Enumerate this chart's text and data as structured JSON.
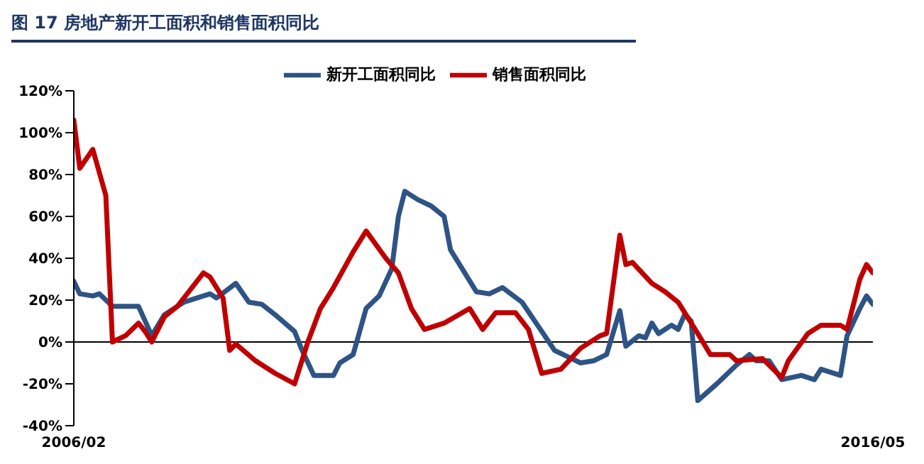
{
  "chart_data": {
    "type": "line",
    "title": "图 17    房地产新开工面积和销售面积同比",
    "series": [
      {
        "name": "新开工面积同比",
        "color": "#2e5486",
        "x": [
          "2006-02",
          "2006-03",
          "2006-05",
          "2006-06",
          "2006-08",
          "2006-12",
          "2007-02",
          "2007-04",
          "2007-07",
          "2007-11",
          "2007-12",
          "2008-03",
          "2008-05",
          "2008-07",
          "2008-09",
          "2008-12",
          "2009-01",
          "2009-03",
          "2009-06",
          "2009-07",
          "2009-09",
          "2009-11",
          "2010-01",
          "2010-03",
          "2010-04",
          "2010-05",
          "2010-07",
          "2010-09",
          "2010-11",
          "2010-12",
          "2011-04",
          "2011-06",
          "2011-08",
          "2011-11",
          "2012-04",
          "2012-08",
          "2012-10",
          "2012-12",
          "2013-02",
          "2013-03",
          "2013-05",
          "2013-06",
          "2013-07",
          "2013-08",
          "2013-10",
          "2013-11",
          "2013-12",
          "2014-01",
          "2014-02",
          "2014-05",
          "2014-08",
          "2014-10",
          "2014-11",
          "2015-01",
          "2015-03",
          "2015-06",
          "2015-08",
          "2015-09",
          "2015-12",
          "2016-01",
          "2016-03",
          "2016-04",
          "2016-05"
        ],
        "values": [
          29,
          23,
          22,
          23,
          17,
          17,
          3,
          13,
          19,
          23,
          21,
          28,
          19,
          18,
          13,
          5,
          -3,
          -16,
          -16,
          -10,
          -6,
          16,
          22,
          35,
          60,
          72,
          68,
          65,
          60,
          44,
          24,
          23,
          26,
          19,
          -4,
          -10,
          -9,
          -6,
          15,
          -2,
          3,
          2,
          9,
          4,
          8,
          6,
          13,
          10,
          -28,
          -20,
          -11,
          -6,
          -9,
          -9,
          -18,
          -16,
          -18,
          -13,
          -16,
          3,
          16,
          22,
          18
        ]
      },
      {
        "name": "销售面积同比",
        "color": "#c00000",
        "x": [
          "2006-02",
          "2006-03",
          "2006-05",
          "2006-07",
          "2006-08",
          "2006-10",
          "2006-12",
          "2007-01",
          "2007-02",
          "2007-04",
          "2007-06",
          "2007-10",
          "2007-11",
          "2008-01",
          "2008-02",
          "2008-03",
          "2008-06",
          "2008-09",
          "2008-12",
          "2009-02",
          "2009-04",
          "2009-06",
          "2009-09",
          "2009-11",
          "2010-02",
          "2010-04",
          "2010-06",
          "2010-08",
          "2010-11",
          "2011-03",
          "2011-05",
          "2011-07",
          "2011-10",
          "2011-12",
          "2012-02",
          "2012-05",
          "2012-08",
          "2012-11",
          "2012-12",
          "2013-02",
          "2013-03",
          "2013-04",
          "2013-07",
          "2013-09",
          "2013-11",
          "2014-02",
          "2014-04",
          "2014-07",
          "2014-08",
          "2014-12",
          "2015-03",
          "2015-04",
          "2015-07",
          "2015-09",
          "2015-12",
          "2016-01",
          "2016-03",
          "2016-04",
          "2016-05"
        ],
        "values": [
          106,
          83,
          92,
          70,
          0,
          3,
          9,
          5,
          0,
          12,
          17,
          33,
          31,
          21,
          -4,
          -1,
          -9,
          -15,
          -20,
          0,
          16,
          26,
          43,
          53,
          40,
          33,
          16,
          6,
          9,
          16,
          6,
          14,
          14,
          6,
          -15,
          -13,
          -3,
          3,
          4,
          51,
          37,
          38,
          28,
          24,
          19,
          4,
          -6,
          -6,
          -9,
          -8,
          -17,
          -9,
          4,
          8,
          8,
          6,
          30,
          37,
          33
        ]
      }
    ],
    "xlim": [
      "2006-02",
      "2016-05"
    ],
    "xticks": [
      {
        "value": "2006-02",
        "label": "2006/02"
      },
      {
        "value": "2016-05",
        "label": "2016/05"
      }
    ],
    "ylim": [
      -40,
      120
    ],
    "yticks": [
      {
        "value": -40,
        "label": "-40%"
      },
      {
        "value": -20,
        "label": "-20%"
      },
      {
        "value": 0,
        "label": "0%"
      },
      {
        "value": 20,
        "label": "20%"
      },
      {
        "value": 40,
        "label": "40%"
      },
      {
        "value": 60,
        "label": "60%"
      },
      {
        "value": 80,
        "label": "80%"
      },
      {
        "value": 100,
        "label": "100%"
      },
      {
        "value": 120,
        "label": "120%"
      }
    ],
    "ref_lines": [
      {
        "axis": "y",
        "value": 0,
        "color": "#000000"
      }
    ],
    "grid": false,
    "legend": "top",
    "marker": "none",
    "line_style": "solid"
  }
}
